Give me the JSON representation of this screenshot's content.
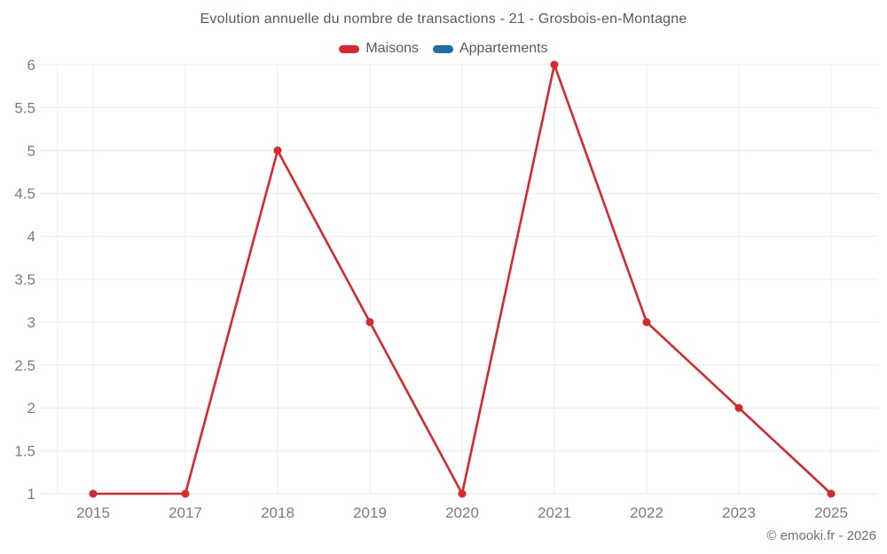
{
  "title": "Evolution annuelle du nombre de transactions - 21 - Grosbois-en-Montagne",
  "legend": [
    {
      "key": "maisons",
      "label": "Maisons",
      "color": "#d7282e"
    },
    {
      "key": "appartements",
      "label": "Appartements",
      "color": "#1c6ea4"
    }
  ],
  "copyright": "© emooki.fr - 2026",
  "colors": {
    "grid": "#ececec",
    "baseline": "#e0e0e0",
    "axis_text": "#7b7c7e",
    "title_text": "#58595b"
  },
  "chart_data": {
    "type": "line",
    "categories": [
      "2015",
      "2017",
      "2018",
      "2019",
      "2020",
      "2021",
      "2022",
      "2023",
      "2025"
    ],
    "series": [
      {
        "name": "Maisons",
        "color": "#d7282e",
        "values": [
          1,
          1,
          5,
          3,
          1,
          6,
          3,
          2,
          1
        ]
      },
      {
        "name": "Appartements",
        "color": "#1c6ea4",
        "values": []
      }
    ],
    "title": "Evolution annuelle du nombre de transactions - 21 - Grosbois-en-Montagne",
    "xlabel": "",
    "ylabel": "",
    "ylim": [
      1,
      6
    ],
    "yticks": [
      1,
      1.5,
      2,
      2.5,
      3,
      3.5,
      4,
      4.5,
      5,
      5.5,
      6
    ],
    "grid": true,
    "legend_position": "top",
    "markers": true
  }
}
